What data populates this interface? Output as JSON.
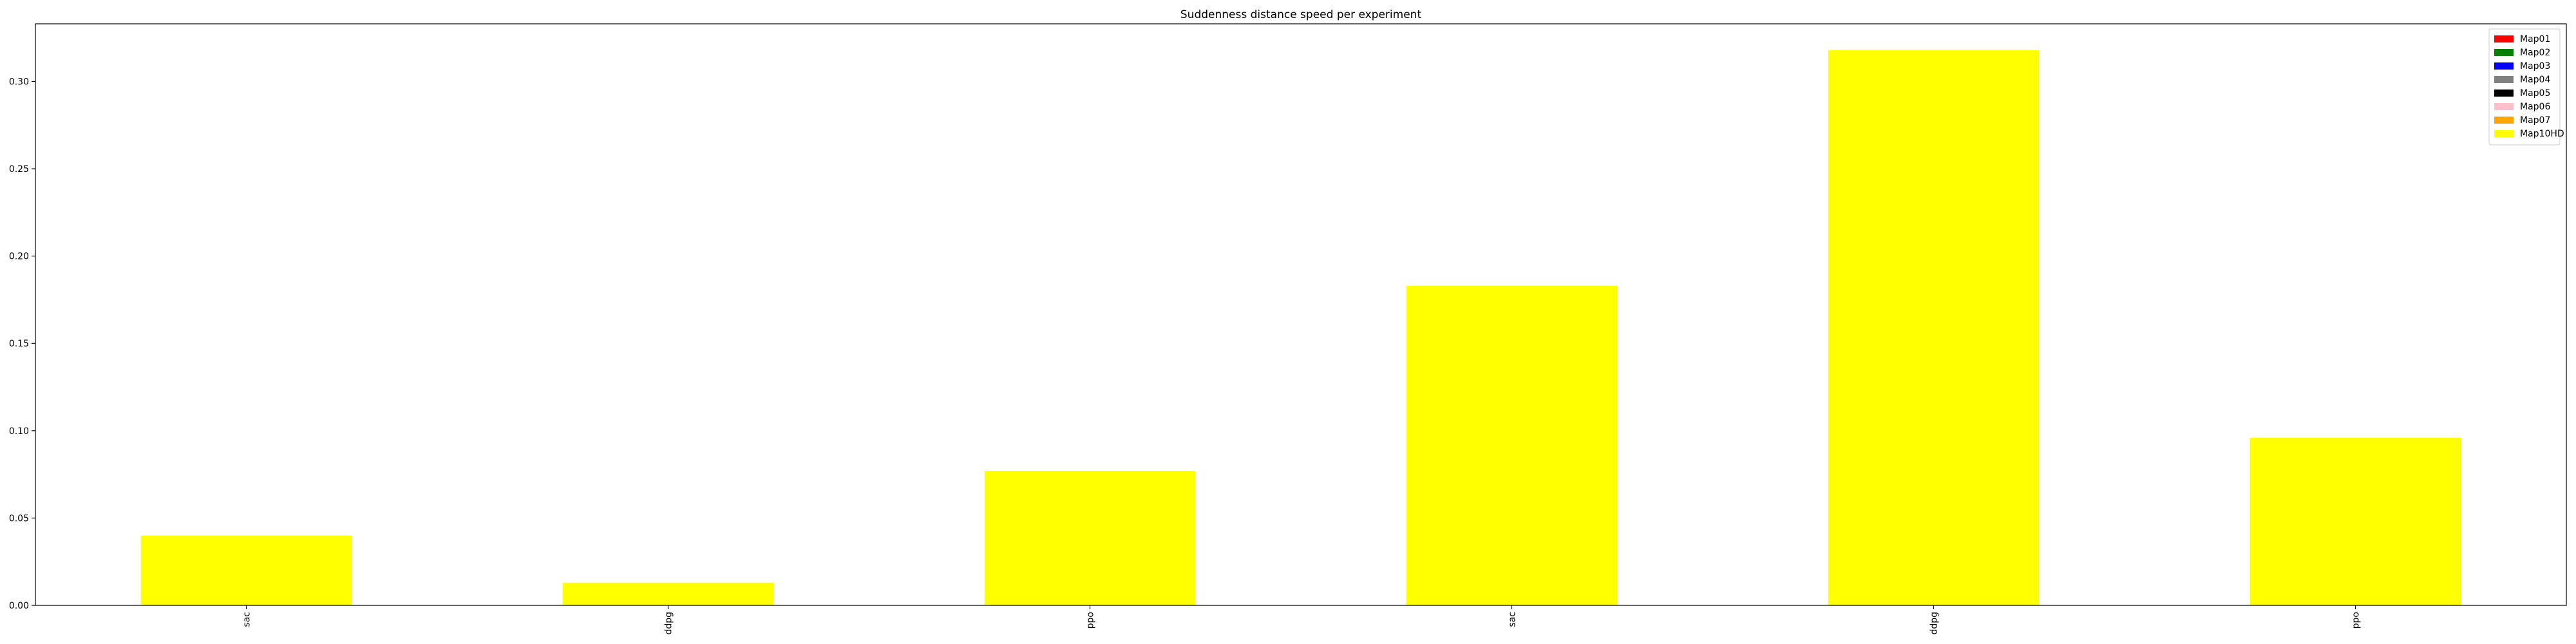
{
  "chart_data": {
    "type": "bar",
    "title": "Suddenness distance speed per experiment",
    "xlabel": "",
    "ylabel": "",
    "categories": [
      "sac",
      "ddpg",
      "ppo",
      "sac",
      "ddpg",
      "ppo"
    ],
    "series": [
      {
        "name": "Map01",
        "color": "#ff0000",
        "values": [
          0,
          0,
          0,
          0,
          0,
          0
        ]
      },
      {
        "name": "Map02",
        "color": "#008000",
        "values": [
          0,
          0,
          0,
          0,
          0,
          0
        ]
      },
      {
        "name": "Map03",
        "color": "#0000ff",
        "values": [
          0,
          0,
          0,
          0,
          0,
          0
        ]
      },
      {
        "name": "Map04",
        "color": "#808080",
        "values": [
          0,
          0,
          0,
          0,
          0,
          0
        ]
      },
      {
        "name": "Map05",
        "color": "#000000",
        "values": [
          0,
          0,
          0,
          0,
          0,
          0
        ]
      },
      {
        "name": "Map06",
        "color": "#ffc0cb",
        "values": [
          0,
          0,
          0,
          0,
          0,
          0
        ]
      },
      {
        "name": "Map07",
        "color": "#ffa500",
        "values": [
          0,
          0,
          0,
          0,
          0,
          0
        ]
      },
      {
        "name": "Map10HD",
        "color": "#ffff00",
        "values": [
          0.04,
          0.013,
          0.077,
          0.183,
          0.318,
          0.096
        ]
      }
    ],
    "ylim": [
      0,
      0.333
    ],
    "yticks": [
      "0.00",
      "0.05",
      "0.10",
      "0.15",
      "0.20",
      "0.25",
      "0.30"
    ],
    "grid": false,
    "legend_position": "top-right",
    "x_tick_rotation": "vertical"
  }
}
